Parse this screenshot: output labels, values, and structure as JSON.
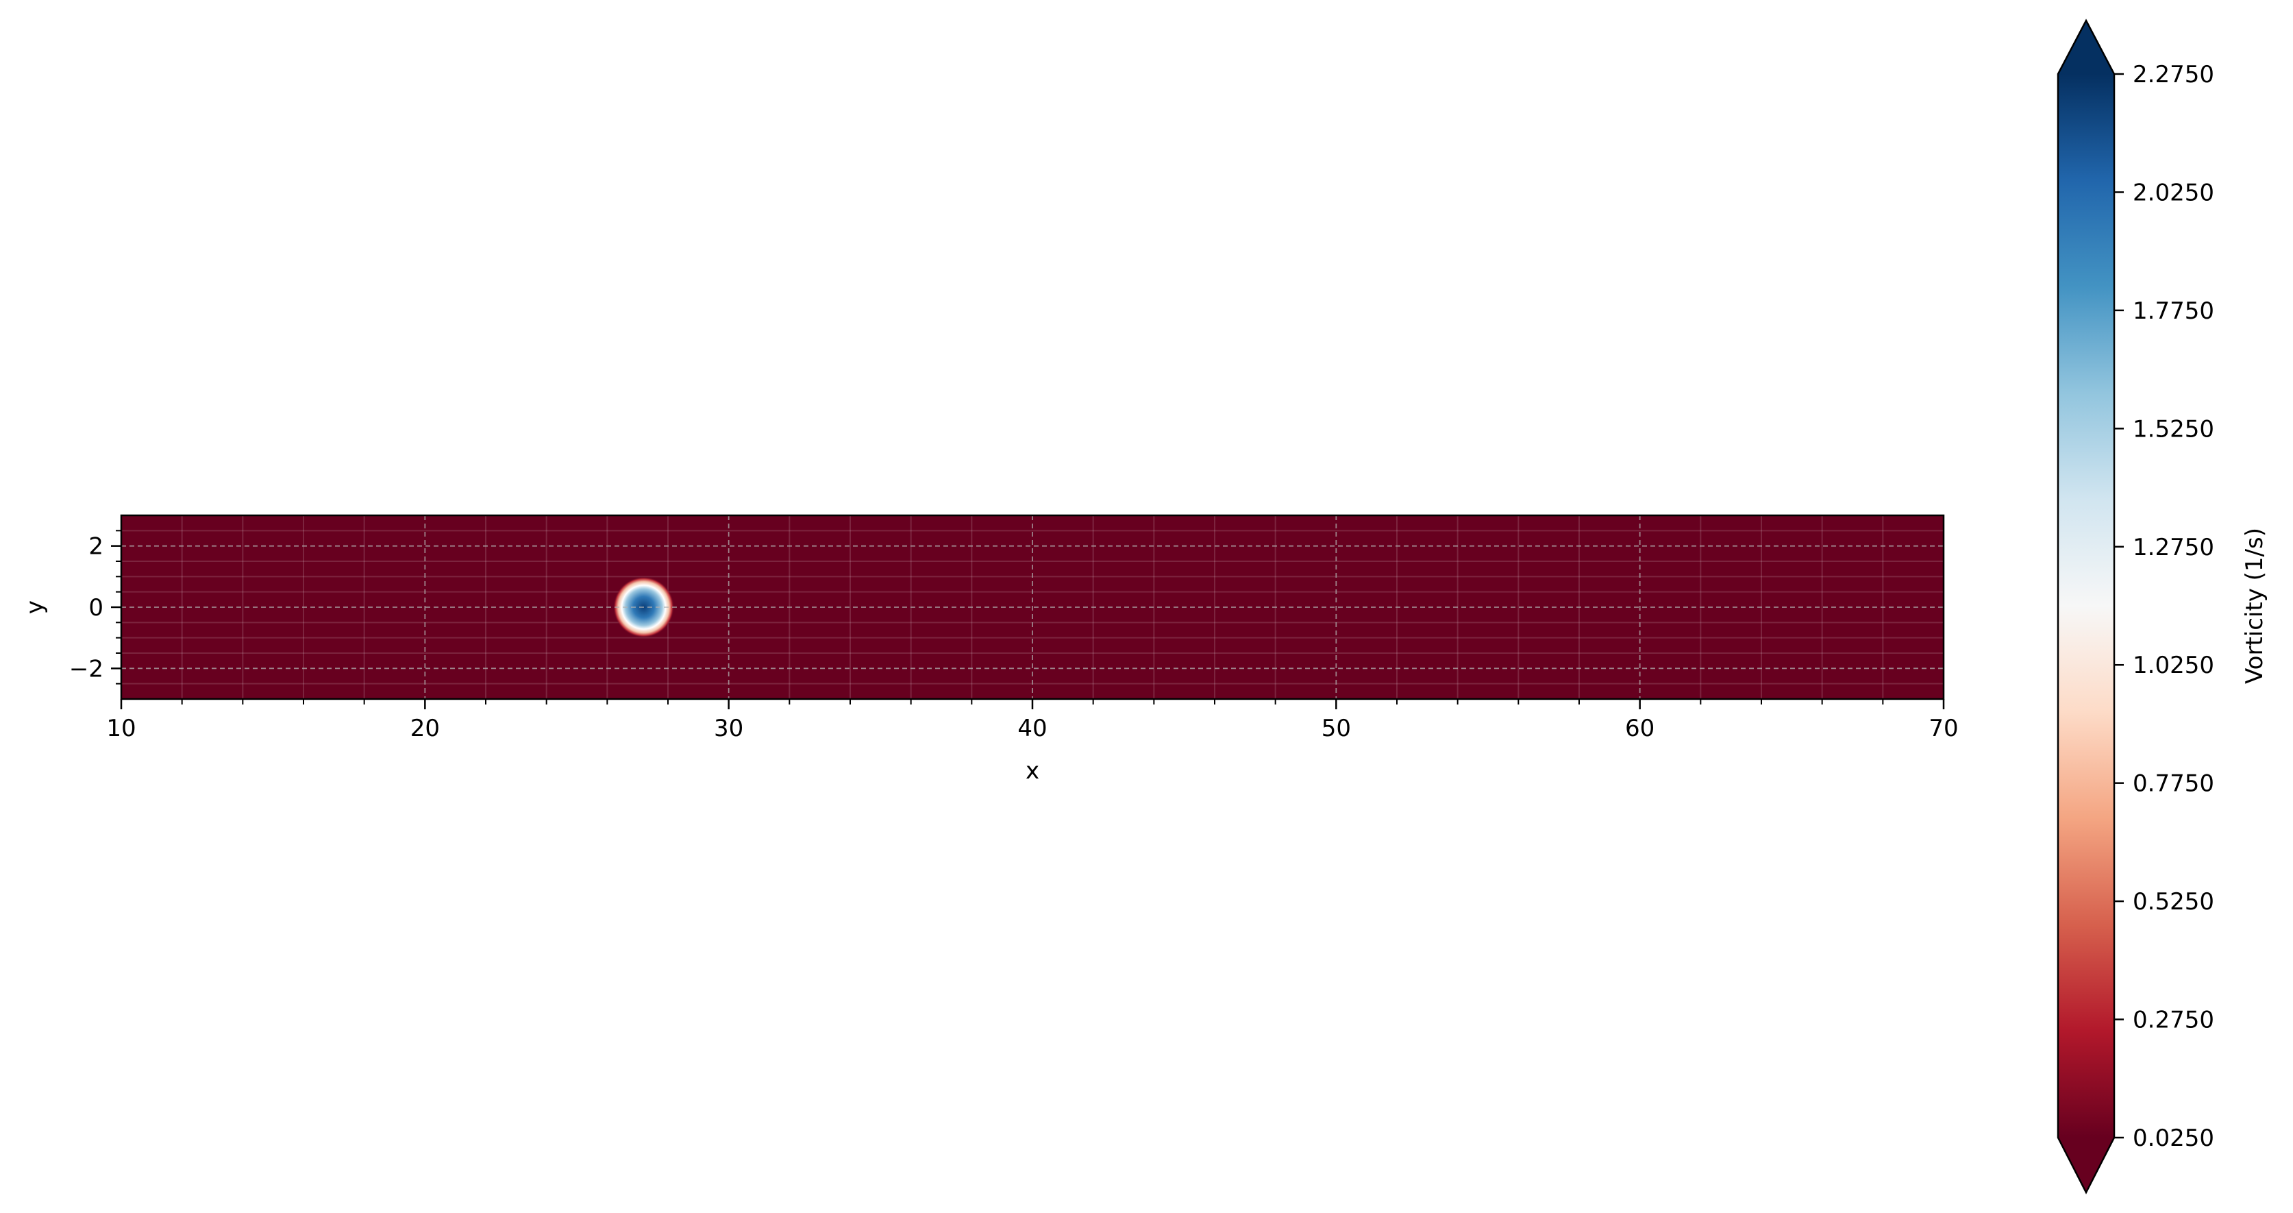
{
  "chart_data": {
    "type": "heatmap",
    "title": "",
    "xlabel": "x",
    "ylabel": "y",
    "xlim": [
      10,
      70
    ],
    "ylim": [
      -3,
      3
    ],
    "x_ticks": [
      "10",
      "20",
      "30",
      "40",
      "50",
      "60",
      "70"
    ],
    "y_ticks": [
      "2",
      "0",
      "−2"
    ],
    "grid": true,
    "grid_style": "dashed",
    "colormap": "RdBu",
    "background_value": 0.025,
    "vortex": {
      "x": 27.2,
      "y": 0.0,
      "peak_value": 2.2,
      "radius": 1.0
    },
    "colorbar": {
      "label": "Vorticity (1/s)",
      "range": [
        0.025,
        2.275
      ],
      "ticks": [
        "2.2750",
        "2.0250",
        "1.7750",
        "1.5250",
        "1.2750",
        "1.0250",
        "0.7750",
        "0.5250",
        "0.2750",
        "0.0250"
      ],
      "extend": "both",
      "stops": [
        "#67001f",
        "#b2182b",
        "#d6604d",
        "#f4a582",
        "#fddbc7",
        "#f7f7f7",
        "#d1e5f0",
        "#92c5de",
        "#4393c3",
        "#2166ac",
        "#053061"
      ]
    }
  }
}
